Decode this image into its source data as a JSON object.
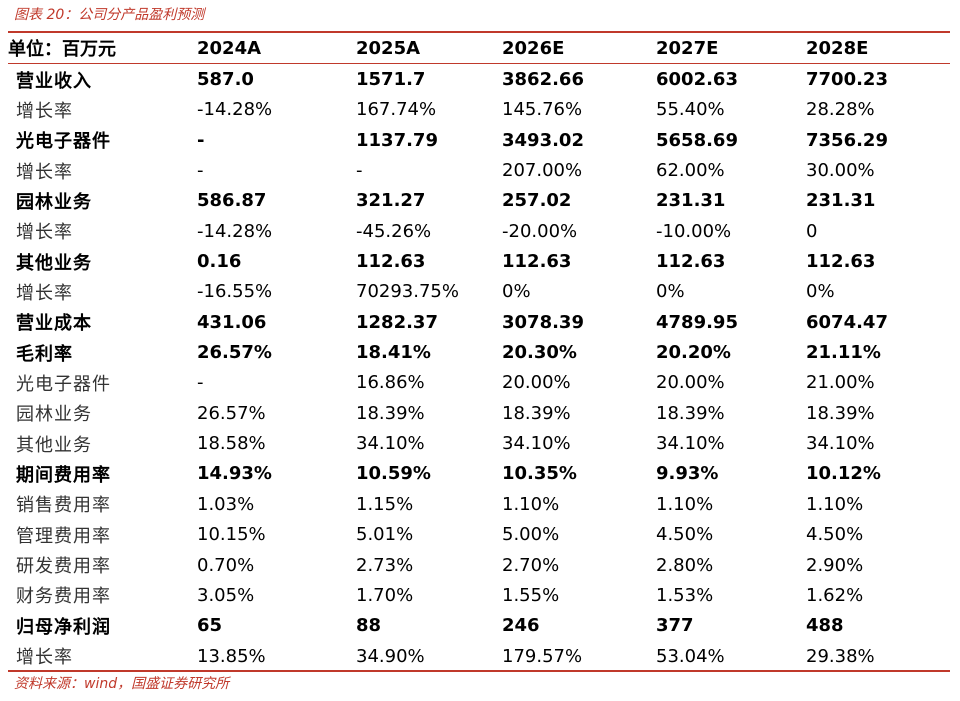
{
  "caption": "图表 20：公司分产品盈利预测",
  "source": "资料来源：wind，国盛证券研究所",
  "header": [
    "单位：百万元",
    "2024A",
    "2025A",
    "2026E",
    "2027E",
    "2028E"
  ],
  "rows": [
    {
      "label": "营业收入",
      "bold": true,
      "values": [
        "587.0",
        "1571.7",
        "3862.66",
        "6002.63",
        "7700.23"
      ]
    },
    {
      "label": "增长率",
      "bold": false,
      "values": [
        "-14.28%",
        "167.74%",
        "145.76%",
        "55.40%",
        "28.28%"
      ]
    },
    {
      "label": "光电子器件",
      "bold": true,
      "values": [
        "-",
        "1137.79",
        "3493.02",
        "5658.69",
        "7356.29"
      ]
    },
    {
      "label": "增长率",
      "bold": false,
      "values": [
        "-",
        "-",
        "207.00%",
        "62.00%",
        "30.00%"
      ]
    },
    {
      "label": "园林业务",
      "bold": true,
      "values": [
        "586.87",
        "321.27",
        "257.02",
        "231.31",
        "231.31"
      ]
    },
    {
      "label": "增长率",
      "bold": false,
      "values": [
        "-14.28%",
        "-45.26%",
        "-20.00%",
        "-10.00%",
        "0"
      ]
    },
    {
      "label": "其他业务",
      "bold": true,
      "values": [
        "0.16",
        "112.63",
        "112.63",
        "112.63",
        "112.63"
      ]
    },
    {
      "label": "增长率",
      "bold": false,
      "values": [
        "-16.55%",
        "70293.75%",
        "0%",
        "0%",
        "0%"
      ]
    },
    {
      "label": "营业成本",
      "bold": true,
      "values": [
        "431.06",
        "1282.37",
        "3078.39",
        "4789.95",
        "6074.47"
      ]
    },
    {
      "label": "毛利率",
      "bold": true,
      "values": [
        "26.57%",
        "18.41%",
        "20.30%",
        "20.20%",
        "21.11%"
      ]
    },
    {
      "label": "光电子器件",
      "bold": false,
      "values": [
        "-",
        "16.86%",
        "20.00%",
        "20.00%",
        "21.00%"
      ]
    },
    {
      "label": "园林业务",
      "bold": false,
      "values": [
        "26.57%",
        "18.39%",
        "18.39%",
        "18.39%",
        "18.39%"
      ]
    },
    {
      "label": "其他业务",
      "bold": false,
      "values": [
        "18.58%",
        "34.10%",
        "34.10%",
        "34.10%",
        "34.10%"
      ]
    },
    {
      "label": "期间费用率",
      "bold": true,
      "values": [
        "14.93%",
        "10.59%",
        "10.35%",
        "9.93%",
        "10.12%"
      ]
    },
    {
      "label": "销售费用率",
      "bold": false,
      "values": [
        "1.03%",
        "1.15%",
        "1.10%",
        "1.10%",
        "1.10%"
      ]
    },
    {
      "label": "管理费用率",
      "bold": false,
      "values": [
        "10.15%",
        "5.01%",
        "5.00%",
        "4.50%",
        "4.50%"
      ]
    },
    {
      "label": "研发费用率",
      "bold": false,
      "values": [
        "0.70%",
        "2.73%",
        "2.70%",
        "2.80%",
        "2.90%"
      ]
    },
    {
      "label": "财务费用率",
      "bold": false,
      "values": [
        "3.05%",
        "1.70%",
        "1.55%",
        "1.53%",
        "1.62%"
      ]
    },
    {
      "label": "归母净利润",
      "bold": true,
      "values": [
        "65",
        "88",
        "246",
        "377",
        "488"
      ]
    },
    {
      "label": "增长率",
      "bold": false,
      "values": [
        "13.85%",
        "34.90%",
        "179.57%",
        "53.04%",
        "29.38%"
      ]
    }
  ],
  "colors": {
    "accent": "#c0392b",
    "text": "#000000"
  }
}
